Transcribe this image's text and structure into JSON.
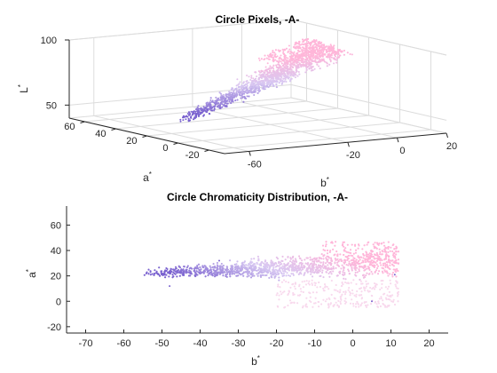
{
  "chart_data": [
    {
      "type": "scatter3d",
      "title": "Circle Pixels, -A-",
      "xlabel": "b",
      "ylabel": "a",
      "zlabel": "L",
      "label_superscript": "*",
      "xlim": [
        -70,
        20
      ],
      "ylim": [
        -30,
        70
      ],
      "zlim": [
        40,
        100
      ],
      "xticks": [
        -60,
        -20,
        0,
        20
      ],
      "xtick_labels": [
        "-60",
        "-20",
        "0",
        "20"
      ],
      "yticks": [
        -20,
        0,
        20,
        40,
        60
      ],
      "ytick_labels": [
        "-20",
        "0",
        "20",
        "40",
        "60"
      ],
      "zticks": [
        50,
        100
      ],
      "ztick_labels": [
        "50",
        "100"
      ],
      "grid": true,
      "colors": {
        "pink": "#ffb6d9",
        "lavender": "#d8c8f2",
        "purple": "#7a62cf",
        "pale": "#f5e8f5",
        "grid": "#dcdcdc",
        "axis": "#262626"
      },
      "series": [
        {
          "marker": "dot",
          "color_gradient": [
            "#ffb6d9",
            "#d8c8f2",
            "#7a62cf"
          ],
          "cluster": {
            "b_range": [
              -55,
              12
            ],
            "a_range": [
              -5,
              48
            ],
            "L_range": [
              47,
              97
            ],
            "points": [
              {
                "b": 8,
                "a": 45,
                "L": 96
              },
              {
                "b": 0,
                "a": 40,
                "L": 93
              },
              {
                "b": -10,
                "a": 30,
                "L": 85
              },
              {
                "b": -20,
                "a": 26,
                "L": 78
              },
              {
                "b": -30,
                "a": 24,
                "L": 70
              },
              {
                "b": -40,
                "a": 22,
                "L": 60
              },
              {
                "b": -50,
                "a": 21,
                "L": 52
              }
            ]
          }
        }
      ]
    },
    {
      "type": "scatter",
      "title": "Circle Chromaticity Distribution, -A-",
      "xlabel": "b",
      "ylabel": "a",
      "label_superscript": "*",
      "xlim": [
        -75,
        25
      ],
      "ylim": [
        -25,
        75
      ],
      "xticks": [
        -70,
        -60,
        -50,
        -40,
        -30,
        -20,
        -10,
        0,
        10,
        20
      ],
      "xtick_labels": [
        "-70",
        "-60",
        "-50",
        "-40",
        "-30",
        "-20",
        "-10",
        "0",
        "10",
        "20"
      ],
      "yticks": [
        -20,
        0,
        20,
        40,
        60
      ],
      "ytick_labels": [
        "-20",
        "0",
        "20",
        "40",
        "60"
      ],
      "grid": false,
      "colors": {
        "pink": "#ffb6d9",
        "lavender": "#d8c8f2",
        "purple": "#7a62cf",
        "pale": "#f5e8f5",
        "axis": "#262626"
      },
      "series": [
        {
          "marker": "dot",
          "color_gradient": [
            "#ffb6d9",
            "#d8c8f2",
            "#7a62cf"
          ],
          "cluster": {
            "b_range": [
              -55,
              12
            ],
            "a_range": [
              -6,
              48
            ],
            "points": [
              {
                "b": -53,
                "a": 23
              },
              {
                "b": -45,
                "a": 24
              },
              {
                "b": -40,
                "a": 25
              },
              {
                "b": -30,
                "a": 27
              },
              {
                "b": -20,
                "a": 28
              },
              {
                "b": -10,
                "a": 30
              },
              {
                "b": -5,
                "a": 35
              },
              {
                "b": 0,
                "a": 45
              },
              {
                "b": 2,
                "a": 47
              },
              {
                "b": -2,
                "a": 0
              },
              {
                "b": 5,
                "a": 20
              },
              {
                "b": 11,
                "a": 21
              },
              {
                "b": -40,
                "a": 12
              },
              {
                "b": -25,
                "a": 10
              }
            ]
          }
        }
      ]
    }
  ]
}
